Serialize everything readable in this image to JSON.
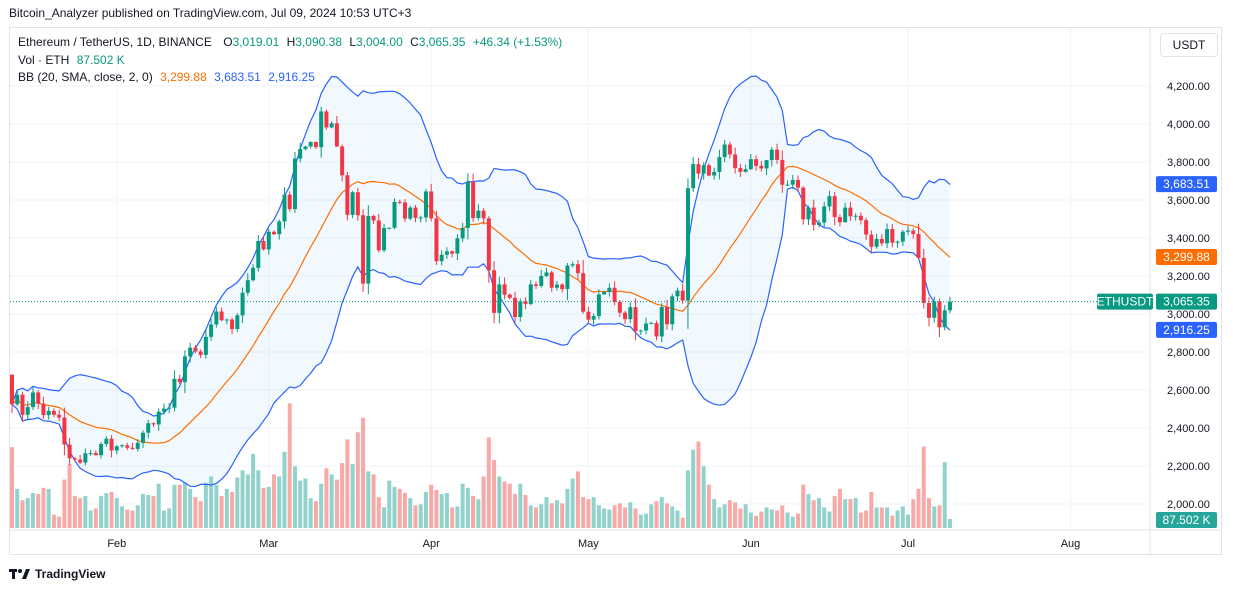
{
  "header": {
    "published": "Bitcoin_Analyzer published on TradingView.com, Jul 09, 2024 10:53 UTC+3"
  },
  "legend": {
    "symbol": "Ethereum / TetherUS, 1D, BINANCE",
    "o_label": "O",
    "o": "3,019.01",
    "h_label": "H",
    "h": "3,090.38",
    "l_label": "L",
    "l": "3,004.00",
    "c_label": "C",
    "c": "3,065.35",
    "change": "+46.34 (+1.53%)",
    "vol_label": "Vol · ETH",
    "vol": "87.502 K",
    "bb_label": "BB (20, SMA, close, 2, 0)",
    "bb_basis": "3,299.88",
    "bb_upper": "3,683.51",
    "bb_lower": "2,916.25"
  },
  "axis": {
    "currency": "USDT",
    "price_ticks": [
      "4,200.00",
      "4,000.00",
      "3,800.00",
      "3,600.00",
      "3,400.00",
      "3,200.00",
      "3,000.00",
      "2,800.00",
      "2,600.00",
      "2,400.00",
      "2,200.00",
      "2,000.00"
    ],
    "time_ticks": [
      "Feb",
      "Mar",
      "Apr",
      "May",
      "Jun",
      "Jul",
      "Aug"
    ],
    "symbol_tag": "ETHUSDT",
    "last_price_tag": "3,065.35",
    "basis_tag": "3,299.88",
    "upper_tag": "3,683.51",
    "lower_tag": "2,916.25",
    "volume_tag": "87.502 K"
  },
  "logo": {
    "text": "TradingView"
  },
  "colors": {
    "up": "#089981",
    "down": "#f23645",
    "bb_band": "#2962ff",
    "bb_basis": "#ff6d00",
    "vol_up": "#92d2cc",
    "vol_down": "#f7a9a7"
  },
  "chart_data": {
    "type": "candlestick",
    "title": "Ethereum / TetherUS, 1D, BINANCE",
    "x_start": "2024-01-12",
    "x_end": "2024-07-09",
    "interval": "1D",
    "ylim": [
      1900,
      4300
    ],
    "grid": true,
    "first_open": 2680,
    "last_candle": {
      "open": 3019.01,
      "high": 3090.38,
      "low": 3004.0,
      "close": 3065.35
    },
    "closes": [
      2525,
      2575,
      2470,
      2510,
      2587,
      2528,
      2468,
      2490,
      2470,
      2455,
      2313,
      2240,
      2234,
      2218,
      2267,
      2268,
      2257,
      2316,
      2344,
      2282,
      2304,
      2309,
      2296,
      2290,
      2322,
      2375,
      2425,
      2419,
      2486,
      2502,
      2507,
      2659,
      2641,
      2777,
      2823,
      2803,
      2785,
      2880,
      2945,
      3013,
      2967,
      2971,
      2921,
      2993,
      3112,
      3178,
      3243,
      3384,
      3340,
      3433,
      3420,
      3487,
      3628,
      3552,
      3818,
      3868,
      3882,
      3905,
      3878,
      4066,
      3982,
      4004,
      3882,
      3730,
      3522,
      3641,
      3520,
      3160,
      3516,
      3492,
      3335,
      3452,
      3454,
      3590,
      3587,
      3502,
      3560,
      3506,
      3508,
      3645,
      3503,
      3278,
      3312,
      3330,
      3318,
      3398,
      3453,
      3695,
      3505,
      3544,
      3503,
      3230,
      3006,
      3156,
      3102,
      3085,
      2984,
      3066,
      3053,
      3156,
      3148,
      3200,
      3219,
      3138,
      3155,
      3131,
      3255,
      3262,
      3215,
      3012,
      2970,
      2989,
      3103,
      3116,
      3138,
      3063,
      3007,
      2973,
      3036,
      2910,
      2913,
      2950,
      2952,
      2882,
      3037,
      2946,
      3093,
      3123,
      3071,
      3662,
      3789,
      3739,
      3783,
      3729,
      3748,
      3826,
      3892,
      3840,
      3768,
      3748,
      3762,
      3815,
      3780,
      3766,
      3810,
      3865,
      3811,
      3680,
      3681,
      3705,
      3665,
      3498,
      3560,
      3469,
      3481,
      3566,
      3620,
      3510,
      3483,
      3560,
      3514,
      3517,
      3494,
      3418,
      3354,
      3395,
      3372,
      3447,
      3375,
      3381,
      3433,
      3439,
      3421,
      3295,
      3058,
      2980,
      3066,
      2930,
      3019,
      3065.35
    ],
    "volumes_k": [
      785,
      380,
      270,
      290,
      340,
      330,
      390,
      380,
      130,
      110,
      470,
      620,
      310,
      290,
      310,
      170,
      190,
      310,
      340,
      350,
      290,
      210,
      180,
      170,
      220,
      330,
      320,
      310,
      430,
      170,
      190,
      420,
      420,
      440,
      380,
      300,
      260,
      440,
      500,
      420,
      310,
      380,
      350,
      490,
      560,
      520,
      720,
      560,
      390,
      400,
      520,
      500,
      740,
      1210,
      600,
      460,
      480,
      290,
      260,
      430,
      580,
      520,
      470,
      630,
      860,
      620,
      930,
      1070,
      550,
      520,
      300,
      200,
      460,
      400,
      380,
      340,
      290,
      220,
      230,
      350,
      420,
      370,
      330,
      340,
      200,
      210,
      430,
      390,
      310,
      280,
      500,
      880,
      660,
      500,
      450,
      430,
      330,
      430,
      320,
      220,
      200,
      230,
      300,
      240,
      270,
      240,
      380,
      480,
      550,
      300,
      280,
      300,
      220,
      190,
      180,
      220,
      240,
      200,
      250,
      190,
      130,
      140,
      230,
      260,
      300,
      240,
      210,
      170,
      100,
      560,
      760,
      840,
      600,
      420,
      280,
      200,
      230,
      270,
      250,
      190,
      230,
      150,
      120,
      160,
      200,
      180,
      170,
      220,
      150,
      110,
      140,
      420,
      330,
      270,
      290,
      200,
      160,
      310,
      380,
      280,
      280,
      290,
      150,
      170,
      350,
      200,
      200,
      200,
      120,
      170,
      210,
      130,
      280,
      380,
      790,
      290,
      210,
      220,
      640,
      87.502
    ],
    "bollinger": {
      "length": 20,
      "type": "SMA",
      "source": "close",
      "mult": 2,
      "basis": 3299.88,
      "upper": 3683.51,
      "lower": 2916.25
    }
  }
}
